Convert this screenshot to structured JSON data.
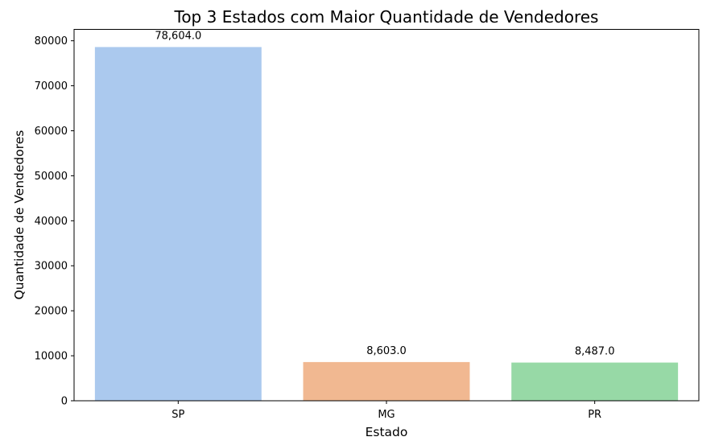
{
  "chart_data": {
    "type": "bar",
    "title": "Top 3 Estados com Maior Quantidade de Vendedores",
    "xlabel": "Estado",
    "ylabel": "Quantidade de Vendedores",
    "categories": [
      "SP",
      "MG",
      "PR"
    ],
    "values": [
      78604,
      8603,
      8487
    ],
    "value_labels": [
      "78,604.0",
      "8,603.0",
      "8,487.0"
    ],
    "colors": [
      "#abc9ee",
      "#f1b891",
      "#97d9a6"
    ],
    "ylim": [
      0,
      82533
    ],
    "yticks": [
      0,
      10000,
      20000,
      30000,
      40000,
      50000,
      60000,
      70000,
      80000
    ],
    "ytick_labels": [
      "0",
      "10000",
      "20000",
      "30000",
      "40000",
      "50000",
      "60000",
      "70000",
      "80000"
    ],
    "grid": false,
    "legend": "none"
  }
}
